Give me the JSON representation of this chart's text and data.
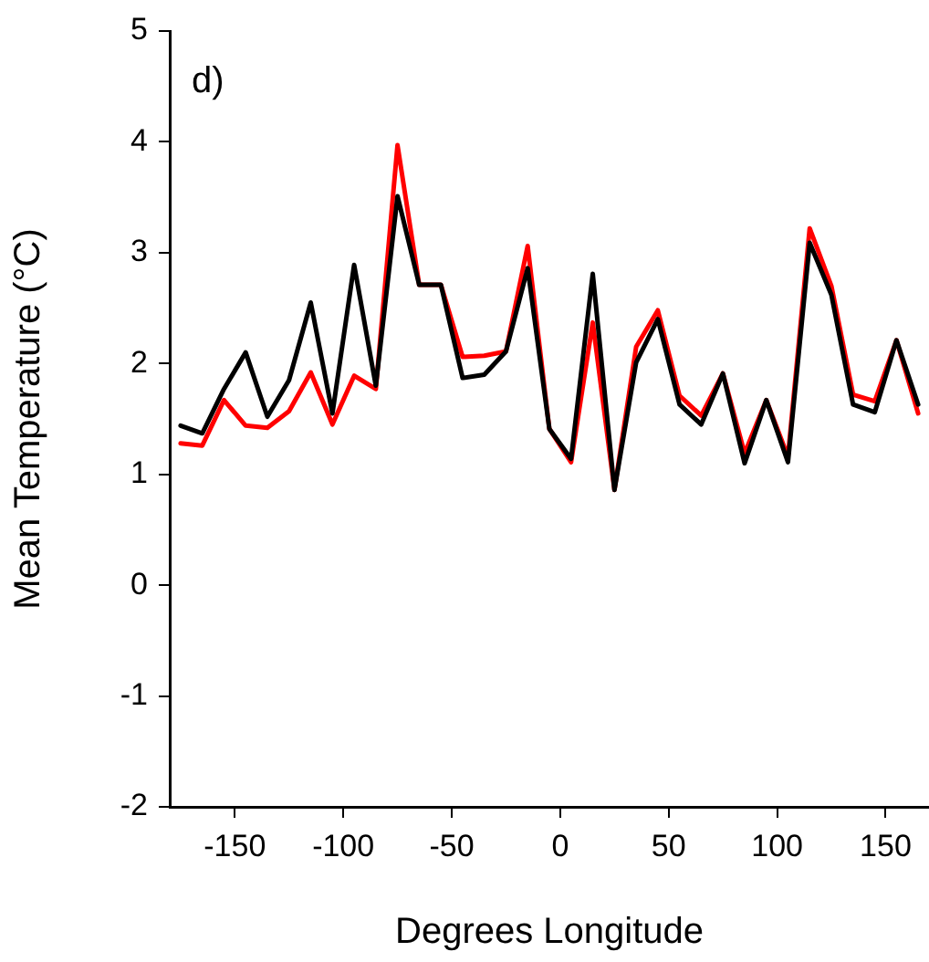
{
  "chart_data": {
    "type": "line",
    "xlabel": "Degrees Longitude",
    "ylabel": "Mean Temperature (°C)",
    "annotations": [
      "d)"
    ],
    "x": [
      -175,
      -165,
      -155,
      -145,
      -135,
      -125,
      -115,
      -105,
      -95,
      -85,
      -75,
      -65,
      -55,
      -45,
      -35,
      -25,
      -15,
      -5,
      5,
      15,
      25,
      35,
      45,
      55,
      65,
      75,
      85,
      95,
      105,
      115,
      125,
      135,
      145,
      155,
      165
    ],
    "series": [
      {
        "color": "#000000",
        "values": [
          1.44,
          1.37,
          1.77,
          2.1,
          1.52,
          1.85,
          2.55,
          1.55,
          2.89,
          1.8,
          3.51,
          2.71,
          2.71,
          1.87,
          1.9,
          2.11,
          2.86,
          1.41,
          1.14,
          2.81,
          0.86,
          2.01,
          2.4,
          1.63,
          1.45,
          1.91,
          1.1,
          1.67,
          1.11,
          3.09,
          2.62,
          1.63,
          1.56,
          2.21,
          1.63
        ]
      },
      {
        "color": "#ff0000",
        "values": [
          1.28,
          1.26,
          1.67,
          1.44,
          1.42,
          1.57,
          1.92,
          1.45,
          1.89,
          1.77,
          3.97,
          2.71,
          2.71,
          2.06,
          2.07,
          2.11,
          3.06,
          1.41,
          1.11,
          2.37,
          0.86,
          2.15,
          2.48,
          1.71,
          1.53,
          1.91,
          1.19,
          1.67,
          1.16,
          3.22,
          2.7,
          1.72,
          1.66,
          2.21,
          1.55
        ]
      }
    ],
    "xlim": [
      -180,
      170
    ],
    "xticks": [
      -150,
      -100,
      -50,
      0,
      50,
      100,
      150
    ],
    "ylim": [
      -2,
      5
    ],
    "yticks": [
      -2,
      -1,
      0,
      1,
      2,
      3,
      4,
      5
    ],
    "grid": false,
    "legend": false,
    "marker": "none",
    "line_style": "solid"
  }
}
